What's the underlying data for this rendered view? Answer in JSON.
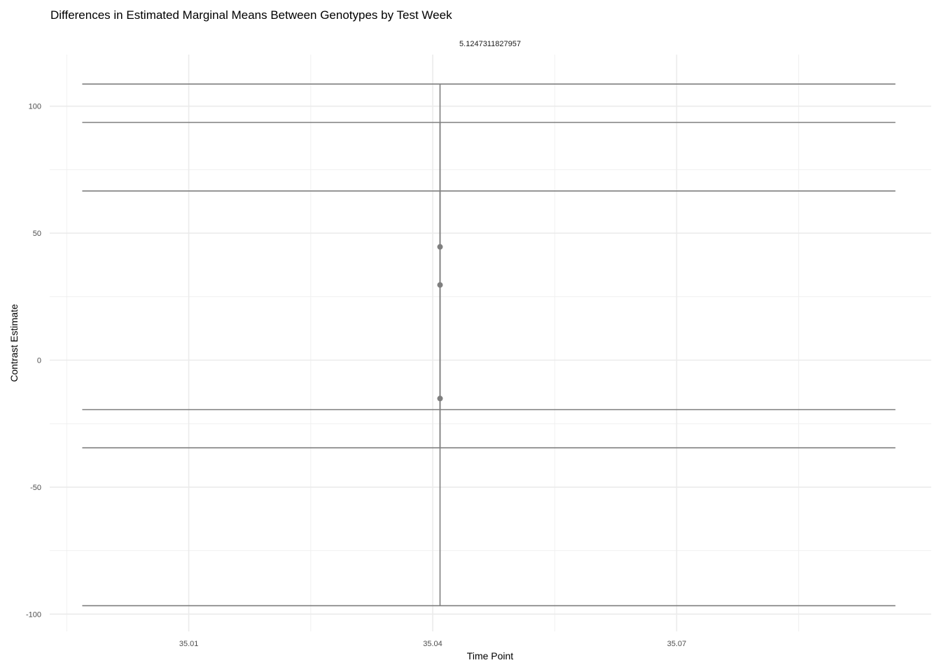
{
  "chart_data": {
    "type": "errorbar",
    "title": "Differences in Estimated Marginal Means Between Genotypes by Test Week",
    "facet_label": "5.1247311827957",
    "xlabel": "Time Point",
    "ylabel": "Contrast Estimate",
    "xlim": [
      34.9929,
      35.1013
    ],
    "ylim": [
      -106.8,
      120.3
    ],
    "x_ticks": [
      35.01,
      35.04,
      35.07
    ],
    "x_tick_labels": [
      "35.01",
      "35.04",
      "35.07"
    ],
    "y_ticks": [
      -100,
      -50,
      0,
      50,
      100
    ],
    "y_tick_labels": [
      "-100",
      "-50",
      "0",
      "50",
      "100"
    ],
    "grid": true,
    "legend": "none",
    "color": "#7f7f7f",
    "points": [
      {
        "x": 35.0409,
        "y": 44.6,
        "ymin": -19.5,
        "ymax": 108.7
      },
      {
        "x": 35.0409,
        "y": 29.6,
        "ymin": -34.5,
        "ymax": 93.6
      },
      {
        "x": 35.0409,
        "y": -15.1,
        "ymin": -96.7,
        "ymax": 66.6
      }
    ],
    "errorbar_x_range": [
      34.9969,
      35.0969
    ]
  }
}
